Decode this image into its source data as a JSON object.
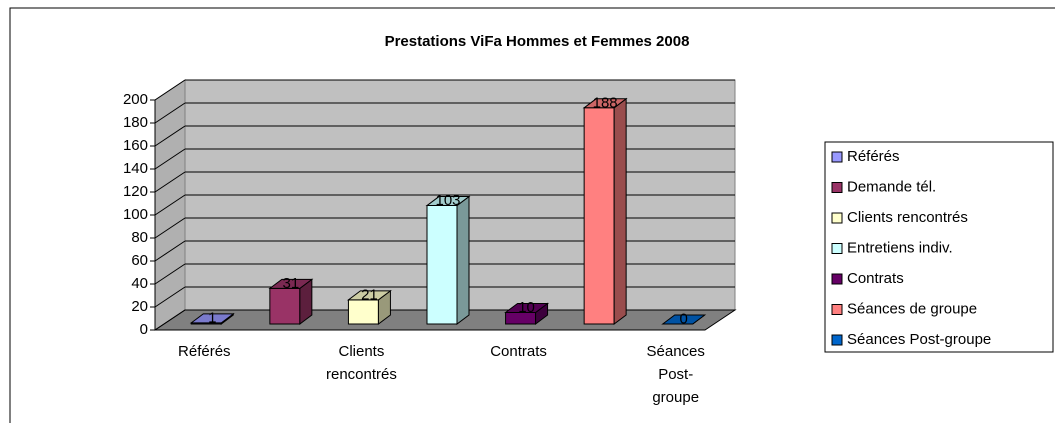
{
  "chart_data": {
    "type": "bar3d",
    "title": "Prestations ViFa Hommes et Femmes 2008",
    "categories": [
      "Référés",
      "Demande tél.",
      "Clients rencontrés",
      "Entretiens indiv.",
      "Contrats",
      "Séances de  groupe",
      "Séances Post-groupe"
    ],
    "values": [
      1,
      31,
      21,
      103,
      10,
      188,
      0
    ],
    "colors": [
      "#9999ff",
      "#993366",
      "#ffffcc",
      "#ccffff",
      "#660066",
      "#ff8080",
      "#0066cc"
    ],
    "ylim": [
      0,
      200
    ],
    "yticks": [
      0,
      20,
      40,
      60,
      80,
      100,
      120,
      140,
      160,
      180,
      200
    ],
    "xtick_interval": 2,
    "grid": true,
    "legend": "right"
  }
}
